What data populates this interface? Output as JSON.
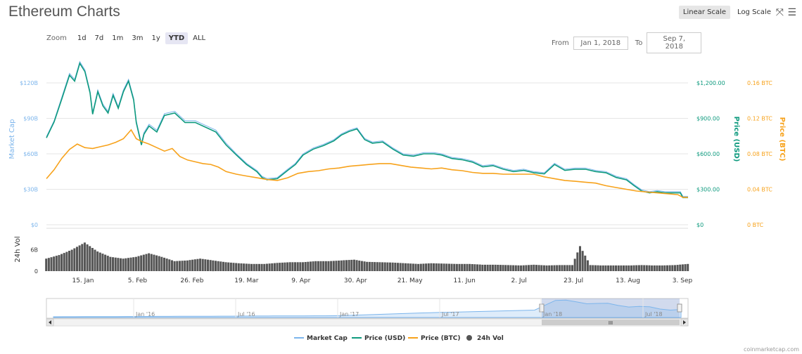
{
  "title": "Ethereum Charts",
  "scale": {
    "linear": "Linear Scale",
    "log": "Log Scale"
  },
  "icons": {
    "fullscreen": "fullscreen-icon",
    "menu": "menu-icon"
  },
  "zoom": {
    "label": "Zoom",
    "options": [
      "1d",
      "7d",
      "1m",
      "3m",
      "1y",
      "YTD",
      "ALL"
    ],
    "active": "YTD"
  },
  "range": {
    "from_label": "From",
    "from": "Jan 1, 2018",
    "to_label": "To",
    "to": "Sep 7, 2018"
  },
  "credit": "coinmarketcap.com",
  "colors": {
    "market_cap": "#7cb5ec",
    "price_usd": "#0e9a7e",
    "price_btc": "#f7a21b",
    "volume": "#555555"
  },
  "chart_data": {
    "type": "line",
    "x_axis_labels": [
      "15. Jan",
      "5. Feb",
      "26. Feb",
      "19. Mar",
      "9. Apr",
      "30. Apr",
      "21. May",
      "11. Jun",
      "2. Jul",
      "23. Jul",
      "13. Aug",
      "3. Sep"
    ],
    "y_axis_left": {
      "title": "Market Cap",
      "ticks": [
        "$0",
        "$30B",
        "$60B",
        "$90B",
        "$120B"
      ]
    },
    "y_axis_usd": {
      "title": "Price (USD)",
      "ticks": [
        "$0",
        "$300.00",
        "$600.00",
        "$900.00",
        "$1,200.00"
      ]
    },
    "y_axis_btc": {
      "title": "Price (BTC)",
      "ticks": [
        "0 BTC",
        "0.04 BTC",
        "0.08 BTC",
        "0.12 BTC",
        "0.16 BTC"
      ]
    },
    "volume_axis": {
      "title": "24h Vol",
      "ticks": [
        "0",
        "6B"
      ]
    },
    "ylim_usd": [
      0,
      1200
    ],
    "ylim_btc": [
      0,
      0.16
    ],
    "ylim_vol": [
      0,
      12
    ],
    "x_days": [
      0,
      250
    ],
    "series": [
      {
        "name": "Market Cap",
        "axis": "usd",
        "points": [
          [
            0,
            745
          ],
          [
            3,
            880
          ],
          [
            6,
            1080
          ],
          [
            9,
            1280
          ],
          [
            11,
            1230
          ],
          [
            13,
            1380
          ],
          [
            15,
            1310
          ],
          [
            17,
            1130
          ],
          [
            18,
            950
          ],
          [
            20,
            1140
          ],
          [
            22,
            1020
          ],
          [
            24,
            960
          ],
          [
            26,
            1110
          ],
          [
            28,
            1000
          ],
          [
            30,
            1140
          ],
          [
            32,
            1230
          ],
          [
            34,
            1070
          ],
          [
            35,
            880
          ],
          [
            37,
            690
          ],
          [
            38,
            780
          ],
          [
            40,
            850
          ],
          [
            43,
            800
          ],
          [
            46,
            940
          ],
          [
            50,
            960
          ],
          [
            54,
            880
          ],
          [
            58,
            880
          ],
          [
            62,
            840
          ],
          [
            66,
            800
          ],
          [
            70,
            690
          ],
          [
            74,
            600
          ],
          [
            78,
            520
          ],
          [
            82,
            460
          ],
          [
            84,
            410
          ],
          [
            86,
            390
          ],
          [
            90,
            400
          ],
          [
            94,
            470
          ],
          [
            97,
            520
          ],
          [
            100,
            600
          ],
          [
            104,
            650
          ],
          [
            108,
            680
          ],
          [
            112,
            720
          ],
          [
            115,
            770
          ],
          [
            118,
            800
          ],
          [
            121,
            820
          ],
          [
            124,
            730
          ],
          [
            127,
            700
          ],
          [
            131,
            710
          ],
          [
            135,
            650
          ],
          [
            139,
            600
          ],
          [
            143,
            590
          ],
          [
            147,
            610
          ],
          [
            151,
            610
          ],
          [
            154,
            600
          ],
          [
            158,
            570
          ],
          [
            162,
            560
          ],
          [
            166,
            540
          ],
          [
            170,
            500
          ],
          [
            174,
            510
          ],
          [
            178,
            480
          ],
          [
            182,
            460
          ],
          [
            186,
            470
          ],
          [
            190,
            450
          ],
          [
            194,
            440
          ],
          [
            198,
            520
          ],
          [
            202,
            470
          ],
          [
            206,
            480
          ],
          [
            210,
            480
          ],
          [
            214,
            460
          ],
          [
            218,
            450
          ],
          [
            222,
            410
          ],
          [
            226,
            390
          ],
          [
            229,
            340
          ],
          [
            232,
            295
          ],
          [
            235,
            280
          ],
          [
            238,
            290
          ],
          [
            241,
            280
          ],
          [
            244,
            280
          ],
          [
            247,
            280
          ],
          [
            248,
            240
          ],
          [
            250,
            240
          ]
        ]
      },
      {
        "name": "Price (USD)",
        "axis": "usd",
        "points": [
          [
            0,
            735
          ],
          [
            3,
            870
          ],
          [
            6,
            1065
          ],
          [
            9,
            1265
          ],
          [
            11,
            1215
          ],
          [
            13,
            1365
          ],
          [
            15,
            1295
          ],
          [
            17,
            1115
          ],
          [
            18,
            935
          ],
          [
            20,
            1125
          ],
          [
            22,
            1005
          ],
          [
            24,
            945
          ],
          [
            26,
            1095
          ],
          [
            28,
            985
          ],
          [
            30,
            1125
          ],
          [
            32,
            1215
          ],
          [
            34,
            1055
          ],
          [
            35,
            865
          ],
          [
            37,
            675
          ],
          [
            38,
            765
          ],
          [
            40,
            835
          ],
          [
            43,
            785
          ],
          [
            46,
            925
          ],
          [
            50,
            945
          ],
          [
            54,
            865
          ],
          [
            58,
            865
          ],
          [
            62,
            825
          ],
          [
            66,
            785
          ],
          [
            70,
            675
          ],
          [
            74,
            590
          ],
          [
            78,
            510
          ],
          [
            82,
            450
          ],
          [
            84,
            400
          ],
          [
            86,
            380
          ],
          [
            90,
            390
          ],
          [
            94,
            460
          ],
          [
            97,
            510
          ],
          [
            100,
            590
          ],
          [
            104,
            640
          ],
          [
            108,
            670
          ],
          [
            112,
            710
          ],
          [
            115,
            760
          ],
          [
            118,
            790
          ],
          [
            121,
            810
          ],
          [
            124,
            720
          ],
          [
            127,
            690
          ],
          [
            131,
            700
          ],
          [
            135,
            640
          ],
          [
            139,
            590
          ],
          [
            143,
            580
          ],
          [
            147,
            600
          ],
          [
            151,
            600
          ],
          [
            154,
            590
          ],
          [
            158,
            560
          ],
          [
            162,
            550
          ],
          [
            166,
            530
          ],
          [
            170,
            490
          ],
          [
            174,
            500
          ],
          [
            178,
            470
          ],
          [
            182,
            450
          ],
          [
            186,
            460
          ],
          [
            190,
            440
          ],
          [
            194,
            430
          ],
          [
            198,
            510
          ],
          [
            202,
            460
          ],
          [
            206,
            470
          ],
          [
            210,
            470
          ],
          [
            214,
            450
          ],
          [
            218,
            440
          ],
          [
            222,
            400
          ],
          [
            226,
            380
          ],
          [
            229,
            330
          ],
          [
            232,
            285
          ],
          [
            235,
            270
          ],
          [
            238,
            280
          ],
          [
            241,
            270
          ],
          [
            244,
            270
          ],
          [
            247,
            270
          ],
          [
            248,
            230
          ],
          [
            250,
            230
          ]
        ]
      },
      {
        "name": "Price (BTC)",
        "axis": "btc",
        "points": [
          [
            0,
            0.052
          ],
          [
            3,
            0.062
          ],
          [
            6,
            0.075
          ],
          [
            9,
            0.085
          ],
          [
            12,
            0.091
          ],
          [
            15,
            0.087
          ],
          [
            18,
            0.086
          ],
          [
            21,
            0.088
          ],
          [
            24,
            0.09
          ],
          [
            27,
            0.093
          ],
          [
            30,
            0.097
          ],
          [
            33,
            0.107
          ],
          [
            35,
            0.097
          ],
          [
            37,
            0.094
          ],
          [
            40,
            0.091
          ],
          [
            43,
            0.087
          ],
          [
            46,
            0.083
          ],
          [
            49,
            0.086
          ],
          [
            52,
            0.077
          ],
          [
            55,
            0.073
          ],
          [
            58,
            0.071
          ],
          [
            61,
            0.069
          ],
          [
            64,
            0.068
          ],
          [
            67,
            0.065
          ],
          [
            70,
            0.06
          ],
          [
            74,
            0.057
          ],
          [
            78,
            0.055
          ],
          [
            82,
            0.053
          ],
          [
            86,
            0.051
          ],
          [
            90,
            0.05
          ],
          [
            94,
            0.053
          ],
          [
            98,
            0.058
          ],
          [
            102,
            0.06
          ],
          [
            106,
            0.061
          ],
          [
            110,
            0.063
          ],
          [
            114,
            0.064
          ],
          [
            118,
            0.066
          ],
          [
            122,
            0.067
          ],
          [
            126,
            0.068
          ],
          [
            130,
            0.069
          ],
          [
            134,
            0.069
          ],
          [
            138,
            0.067
          ],
          [
            142,
            0.065
          ],
          [
            146,
            0.064
          ],
          [
            150,
            0.063
          ],
          [
            154,
            0.064
          ],
          [
            158,
            0.062
          ],
          [
            162,
            0.061
          ],
          [
            166,
            0.059
          ],
          [
            170,
            0.058
          ],
          [
            174,
            0.058
          ],
          [
            178,
            0.057
          ],
          [
            182,
            0.057
          ],
          [
            186,
            0.057
          ],
          [
            190,
            0.057
          ],
          [
            194,
            0.054
          ],
          [
            198,
            0.052
          ],
          [
            202,
            0.05
          ],
          [
            206,
            0.049
          ],
          [
            210,
            0.048
          ],
          [
            214,
            0.047
          ],
          [
            218,
            0.044
          ],
          [
            222,
            0.042
          ],
          [
            226,
            0.04
          ],
          [
            230,
            0.038
          ],
          [
            234,
            0.037
          ],
          [
            238,
            0.036
          ],
          [
            242,
            0.035
          ],
          [
            246,
            0.034
          ],
          [
            248,
            0.031
          ],
          [
            250,
            0.031
          ]
        ]
      },
      {
        "name": "24h Vol",
        "axis": "vol",
        "type": "bar",
        "points": [
          [
            0,
            3.5
          ],
          [
            5,
            4.5
          ],
          [
            10,
            6
          ],
          [
            15,
            8
          ],
          [
            20,
            5.5
          ],
          [
            25,
            4
          ],
          [
            30,
            3.5
          ],
          [
            35,
            4
          ],
          [
            40,
            5
          ],
          [
            45,
            4
          ],
          [
            50,
            2.8
          ],
          [
            55,
            3
          ],
          [
            60,
            3.5
          ],
          [
            65,
            3
          ],
          [
            70,
            2.5
          ],
          [
            75,
            2.2
          ],
          [
            80,
            2
          ],
          [
            85,
            2
          ],
          [
            90,
            2.3
          ],
          [
            95,
            2.5
          ],
          [
            100,
            2.5
          ],
          [
            105,
            2.8
          ],
          [
            110,
            2.8
          ],
          [
            115,
            3
          ],
          [
            120,
            3.2
          ],
          [
            125,
            2.6
          ],
          [
            130,
            2.5
          ],
          [
            135,
            2.4
          ],
          [
            140,
            2.2
          ],
          [
            145,
            2
          ],
          [
            150,
            2.2
          ],
          [
            155,
            2.1
          ],
          [
            160,
            2
          ],
          [
            165,
            2
          ],
          [
            170,
            1.8
          ],
          [
            175,
            1.8
          ],
          [
            180,
            1.7
          ],
          [
            185,
            1.6
          ],
          [
            190,
            1.8
          ],
          [
            195,
            1.6
          ],
          [
            200,
            1.7
          ],
          [
            205,
            1.7
          ],
          [
            208,
            7
          ],
          [
            212,
            1.7
          ],
          [
            216,
            1.6
          ],
          [
            220,
            1.6
          ],
          [
            224,
            1.6
          ],
          [
            228,
            1.6
          ],
          [
            232,
            1.7
          ],
          [
            236,
            1.6
          ],
          [
            240,
            1.6
          ],
          [
            245,
            1.7
          ],
          [
            250,
            2
          ]
        ]
      }
    ],
    "navigator": {
      "labels": [
        "Jan '16",
        "Jul '16",
        "Jan '17",
        "Jul '17",
        "Jan '18",
        "Jul '18"
      ],
      "scroll_thumb_icon": "grip-icon",
      "left_arrow_icon": "left-arrow-icon",
      "right_arrow_icon": "right-arrow-icon"
    },
    "legend": {
      "placement": "bottom-center",
      "items": [
        "Market Cap",
        "Price (USD)",
        "Price (BTC)",
        "24h Vol"
      ]
    }
  }
}
